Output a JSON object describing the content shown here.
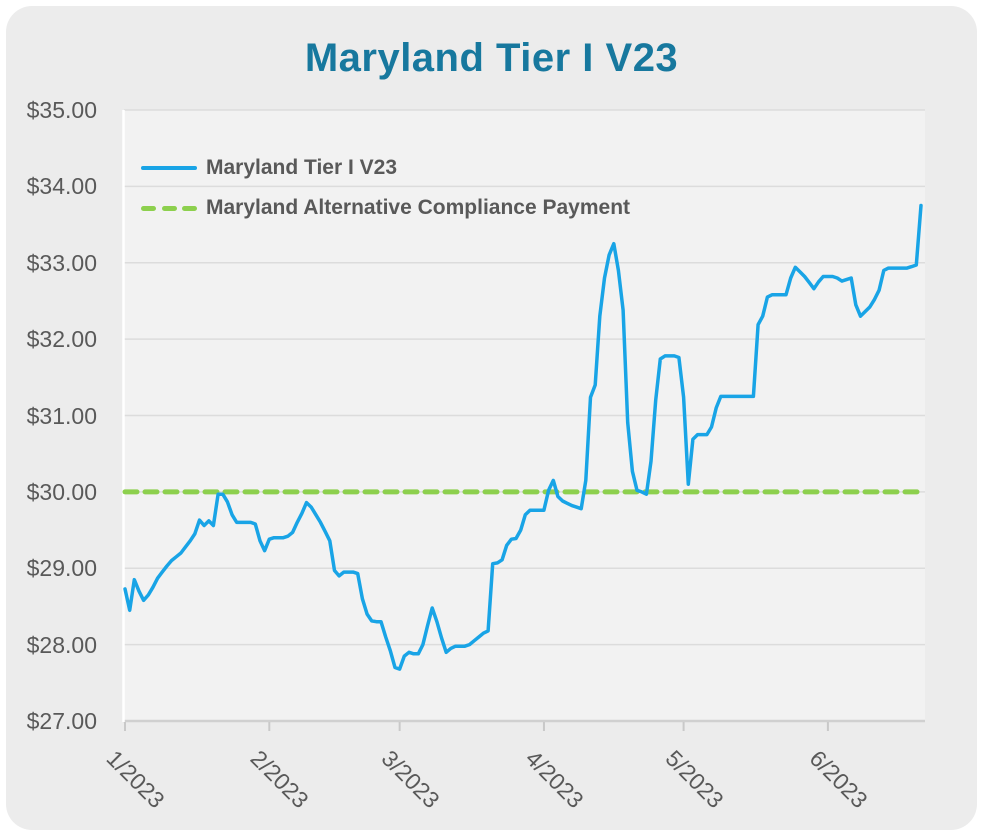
{
  "title": "Maryland Tier I V23",
  "colors": {
    "title_text": "#17789E",
    "card_background": "#ECECEC",
    "plot_background": "#F2F2F2",
    "gridline": "#DCDCDC",
    "axis_line": "#D0D0D0",
    "tick_mark": "#C9C9C9",
    "label_text": "#595959",
    "series_blue": "#19A4E6",
    "series_green": "#8DD04E"
  },
  "legend": {
    "items": [
      {
        "label": "Maryland Tier I V23",
        "swatch": "solid-blue-line"
      },
      {
        "label": "Maryland Alternative Compliance Payment",
        "swatch": "dashed-green-line"
      }
    ]
  },
  "chart_data": {
    "type": "line",
    "title": "Maryland Tier I V23",
    "xlabel": "",
    "ylabel": "",
    "ylim": [
      27,
      35
    ],
    "grid": true,
    "legend_position": "inside-top-left",
    "yticks": [
      {
        "label": "$35.00",
        "value": 35
      },
      {
        "label": "$34.00",
        "value": 34
      },
      {
        "label": "$33.00",
        "value": 33
      },
      {
        "label": "$32.00",
        "value": 32
      },
      {
        "label": "$31.00",
        "value": 31
      },
      {
        "label": "$30.00",
        "value": 30
      },
      {
        "label": "$29.00",
        "value": 29
      },
      {
        "label": "$28.00",
        "value": 28
      },
      {
        "label": "$27.00",
        "value": 27
      }
    ],
    "xticks": [
      {
        "label": "1/2023",
        "index": 0
      },
      {
        "label": "2/2023",
        "index": 31
      },
      {
        "label": "3/2023",
        "index": 59
      },
      {
        "label": "4/2023",
        "index": 90
      },
      {
        "label": "5/2023",
        "index": 120
      },
      {
        "label": "6/2023",
        "index": 151
      }
    ],
    "frequency": "daily",
    "series": [
      {
        "name": "Maryland Tier I V23",
        "style": "solid",
        "color": "#19A4E6",
        "values": [
          28.73,
          28.45,
          28.85,
          28.7,
          28.58,
          28.65,
          28.75,
          28.87,
          28.95,
          29.03,
          29.1,
          29.15,
          29.2,
          29.28,
          29.36,
          29.45,
          29.63,
          29.56,
          29.62,
          29.56,
          29.97,
          29.97,
          29.87,
          29.7,
          29.6,
          29.6,
          29.6,
          29.6,
          29.58,
          29.36,
          29.23,
          29.38,
          29.4,
          29.4,
          29.4,
          29.42,
          29.47,
          29.6,
          29.72,
          29.86,
          29.8,
          29.7,
          29.6,
          29.48,
          29.36,
          28.97,
          28.9,
          28.95,
          28.95,
          28.95,
          28.93,
          28.6,
          28.4,
          28.31,
          28.3,
          28.3,
          28.1,
          27.92,
          27.7,
          27.68,
          27.85,
          27.9,
          27.88,
          27.88,
          28.0,
          28.25,
          28.48,
          28.3,
          28.09,
          27.9,
          27.95,
          27.98,
          27.98,
          27.98,
          28.0,
          28.05,
          28.1,
          28.15,
          28.18,
          29.06,
          29.07,
          29.11,
          29.3,
          29.38,
          29.39,
          29.5,
          29.7,
          29.76,
          29.76,
          29.76,
          29.76,
          30.02,
          30.15,
          29.94,
          29.88,
          29.85,
          29.82,
          29.8,
          29.78,
          30.15,
          31.24,
          31.4,
          32.3,
          32.8,
          33.1,
          33.25,
          32.9,
          32.38,
          30.91,
          30.27,
          30.02,
          30.0,
          29.97,
          30.4,
          31.2,
          31.74,
          31.78,
          31.78,
          31.78,
          31.76,
          31.24,
          30.1,
          30.69,
          30.75,
          30.75,
          30.75,
          30.85,
          31.1,
          31.25,
          31.25,
          31.25,
          31.25,
          31.25,
          31.25,
          31.25,
          31.25,
          32.19,
          32.3,
          32.55,
          32.58,
          32.58,
          32.58,
          32.58,
          32.8,
          32.94,
          32.88,
          32.82,
          32.74,
          32.66,
          32.75,
          32.82,
          32.82,
          32.82,
          32.8,
          32.76,
          32.78,
          32.8,
          32.45,
          32.3,
          32.36,
          32.42,
          32.52,
          32.64,
          32.9,
          32.93,
          32.93,
          32.93,
          32.93,
          32.93,
          32.95,
          32.97,
          33.75
        ]
      },
      {
        "name": "Maryland Alternative Compliance Payment",
        "style": "dashed",
        "color": "#8DD04E",
        "value": 30.0
      }
    ]
  }
}
